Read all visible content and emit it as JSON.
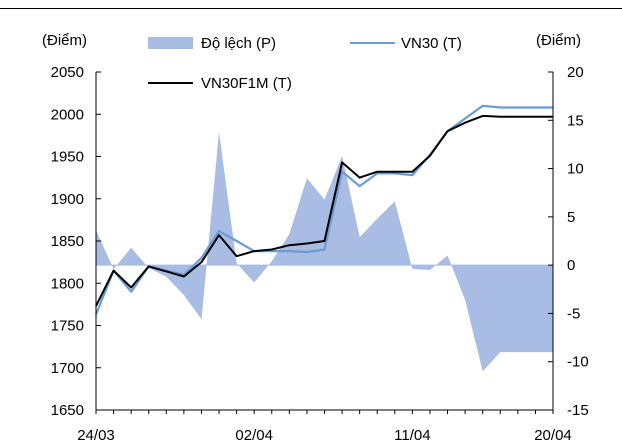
{
  "chart_data": {
    "type": "line",
    "left_axis_label": "(Điểm)",
    "right_axis_label": "(Điểm)",
    "x_tick_labels": [
      "24/03",
      "02/04",
      "11/04",
      "20/04"
    ],
    "left_ylim": [
      1650,
      2050
    ],
    "left_yticks": [
      1650,
      1700,
      1750,
      1800,
      1850,
      1900,
      1950,
      2000,
      2050
    ],
    "right_ylim": [
      -15,
      20
    ],
    "right_yticks": [
      -15,
      -10,
      -5,
      0,
      5,
      10,
      15,
      20
    ],
    "legend": [
      {
        "label": "Độ lệch (P)",
        "kind": "area",
        "color": "#a9bce3"
      },
      {
        "label": "VN30 (T)",
        "kind": "line",
        "color": "#6a9bd3"
      },
      {
        "label": "VN30F1M (T)",
        "kind": "line",
        "color": "#000000"
      }
    ],
    "x": [
      0,
      1,
      2,
      3,
      4,
      5,
      6,
      7,
      8,
      9,
      10,
      11,
      12,
      13,
      14,
      15,
      16,
      17,
      18,
      19,
      20,
      21,
      22,
      23,
      24,
      25,
      26
    ],
    "series": [
      {
        "name": "Độ lệch (P)",
        "axis": "right",
        "color": "#a9bce3",
        "values": [
          3.6,
          -0.4,
          1.8,
          -0.3,
          -1.2,
          -3.1,
          -5.6,
          13.8,
          0.2,
          -1.8,
          0.4,
          3.2,
          9.0,
          6.8,
          11.3,
          2.9,
          4.8,
          6.6,
          -0.4,
          -0.5,
          1.0,
          -3.6,
          -11.0,
          -9.0,
          -9.0,
          -9.0,
          -9.0
        ]
      },
      {
        "name": "VN30 (T)",
        "axis": "left",
        "color": "#6a9bd3",
        "values": [
          1763,
          1815,
          1790,
          1820,
          1815,
          1810,
          1830,
          1862,
          1850,
          1838,
          1838,
          1838,
          1837,
          1840,
          1932,
          1915,
          1930,
          1930,
          1928,
          1952,
          1980,
          1995,
          2010,
          2008,
          2008,
          2008,
          2008
        ]
      },
      {
        "name": "VN30F1M (T)",
        "axis": "left",
        "color": "#000000",
        "values": [
          1773,
          1815,
          1795,
          1820,
          1814,
          1808,
          1825,
          1857,
          1832,
          1838,
          1840,
          1845,
          1847,
          1850,
          1943,
          1925,
          1932,
          1932,
          1932,
          1951,
          1980,
          1990,
          1998,
          1997,
          1997,
          1997,
          1997
        ]
      }
    ]
  }
}
